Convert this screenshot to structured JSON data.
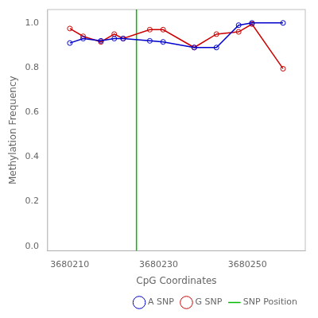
{
  "chart_data": {
    "type": "line",
    "xlabel": "CpG Coordinates",
    "ylabel": "Methylation Frequency",
    "x": [
      3680210,
      3680213,
      3680217,
      3680220,
      3680222,
      3680228,
      3680231,
      3680238,
      3680243,
      3680248,
      3680251,
      3680258
    ],
    "series": [
      {
        "name": "A SNP",
        "color": "#0000cc",
        "marker": "circle",
        "values": [
          0.91,
          0.93,
          0.92,
          0.93,
          0.93,
          0.92,
          0.915,
          0.89,
          0.89,
          0.99,
          1.0,
          1.0
        ]
      },
      {
        "name": "G SNP",
        "color": "#cc0000",
        "marker": "circle",
        "values": [
          0.975,
          0.94,
          0.915,
          0.95,
          0.93,
          0.97,
          0.97,
          0.89,
          0.95,
          0.96,
          0.995,
          0.795
        ]
      }
    ],
    "annotations": [
      {
        "type": "vline",
        "x": 3680225,
        "label": "SNP Position",
        "color": "#00bb00"
      }
    ],
    "xlim": [
      3680205,
      3680263
    ],
    "xticks": [
      3680210,
      3680230,
      3680250
    ],
    "ylim": [
      -0.02,
      1.06
    ],
    "yticks": [
      {
        "value": 0.0,
        "label": "0.0"
      },
      0.2,
      0.4,
      0.6,
      0.8,
      {
        "value": 1.0,
        "label": "1.0"
      }
    ],
    "grid": false,
    "legend": "lower right"
  }
}
